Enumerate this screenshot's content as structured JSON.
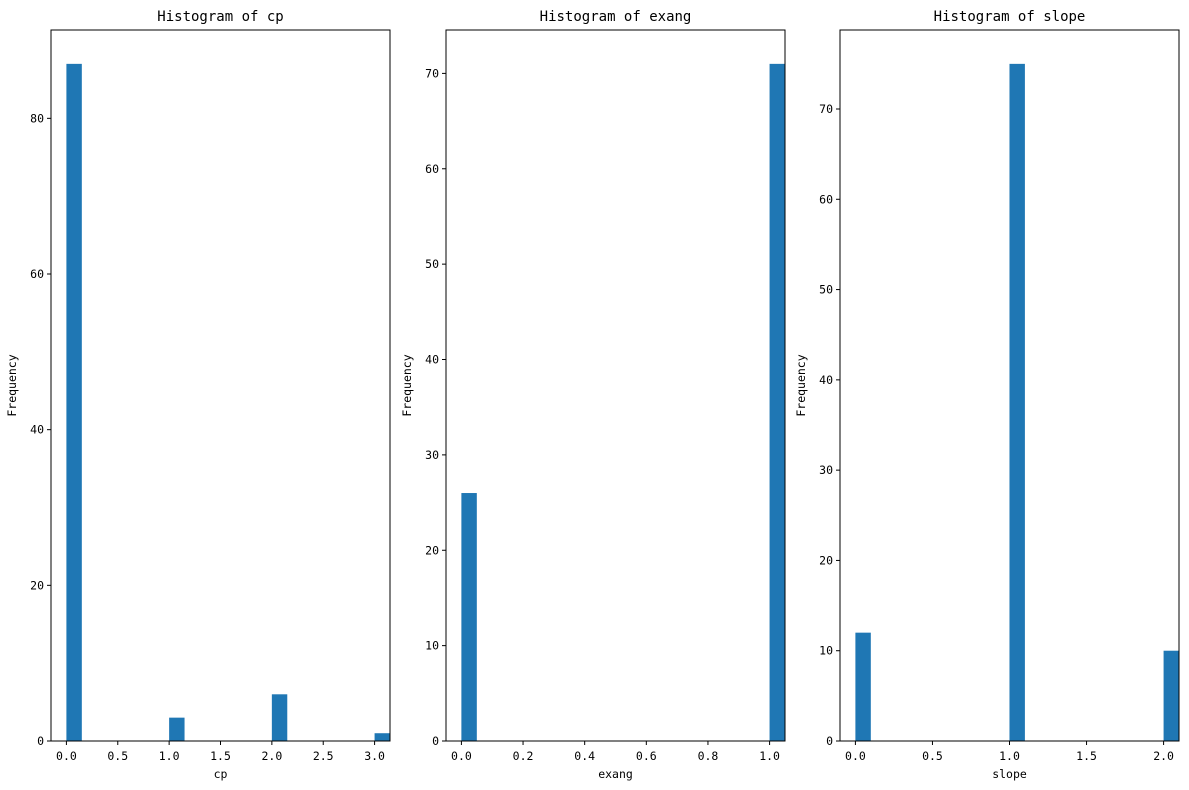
{
  "chart_data": [
    {
      "type": "bar",
      "title": "Histogram of cp",
      "xlabel": "cp",
      "ylabel": "Frequency",
      "x": [
        0.0,
        1.0,
        2.0,
        3.0
      ],
      "values": [
        87,
        3,
        6,
        1
      ],
      "xlim": [
        -0.15,
        3.15
      ],
      "ylim": [
        0,
        91.35
      ],
      "xticks": [
        "0.0",
        "0.5",
        "1.0",
        "1.5",
        "2.0",
        "2.5",
        "3.0"
      ],
      "yticks": [
        "0",
        "20",
        "40",
        "60",
        "80"
      ],
      "bar_color": "#1f77b4"
    },
    {
      "type": "bar",
      "title": "Histogram of exang",
      "xlabel": "exang",
      "ylabel": "Frequency",
      "x": [
        0.0,
        1.0
      ],
      "values": [
        26,
        71
      ],
      "xlim": [
        -0.05,
        1.05
      ],
      "ylim": [
        0,
        74.55
      ],
      "xticks": [
        "0.0",
        "0.2",
        "0.4",
        "0.6",
        "0.8",
        "1.0"
      ],
      "yticks": [
        "0",
        "10",
        "20",
        "30",
        "40",
        "50",
        "60",
        "70"
      ],
      "bar_color": "#1f77b4"
    },
    {
      "type": "bar",
      "title": "Histogram of slope",
      "xlabel": "slope",
      "ylabel": "Frequency",
      "x": [
        0.0,
        1.0,
        2.0
      ],
      "values": [
        12,
        75,
        10
      ],
      "xlim": [
        -0.1,
        2.1
      ],
      "ylim": [
        0,
        78.75
      ],
      "xticks": [
        "0.0",
        "0.5",
        "1.0",
        "1.5",
        "2.0"
      ],
      "yticks": [
        "0",
        "10",
        "20",
        "30",
        "40",
        "50",
        "60",
        "70"
      ],
      "bar_color": "#1f77b4"
    }
  ]
}
